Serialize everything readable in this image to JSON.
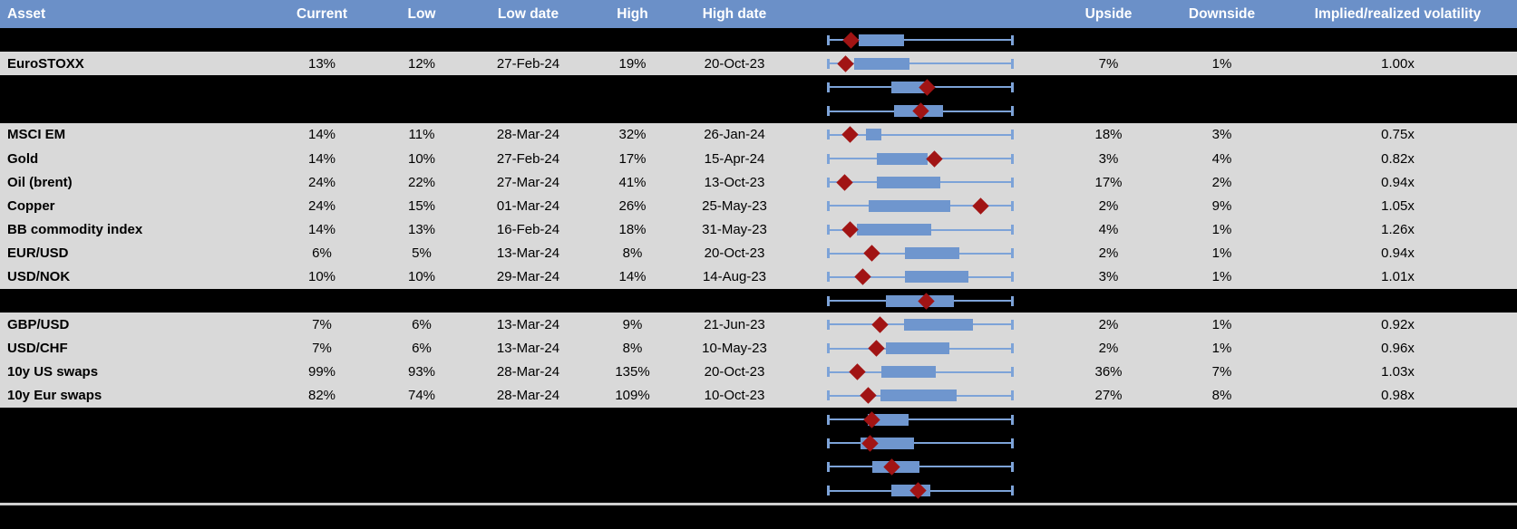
{
  "colors": {
    "header_bg": "#6b90c8",
    "header_text": "#ffffff",
    "row_gray": "#d9d9d9",
    "row_black": "#000000",
    "box_blue": "#6f96ce",
    "whisker_blue": "#7da3d8",
    "diamond_red": "#a11414",
    "separator_gray": "#cfcfcf"
  },
  "header": {
    "columns": [
      "Asset",
      "Current",
      "Low",
      "Low date",
      "High",
      "High date",
      "",
      "Upside",
      "Downside",
      "Implied/realized volatility"
    ]
  },
  "rows": [
    {
      "type": "hidden",
      "chart": {
        "box": [
          0.167,
          0.412
        ],
        "diamond": 0.127
      }
    },
    {
      "type": "data",
      "asset": "EuroSTOXX",
      "current": "13%",
      "low": "12%",
      "low_date": "27-Feb-24",
      "high": "19%",
      "high_date": "20-Oct-23",
      "upside": "7%",
      "downside": "1%",
      "implied": "1.00x",
      "chart": {
        "box": [
          0.142,
          0.441
        ],
        "diamond": 0.098
      }
    },
    {
      "type": "hidden",
      "chart": {
        "box": [
          0.343,
          0.544
        ],
        "diamond": 0.539
      }
    },
    {
      "type": "hidden",
      "chart": {
        "box": [
          0.358,
          0.623
        ],
        "diamond": 0.5
      }
    },
    {
      "type": "data",
      "asset": "MSCI EM",
      "current": "14%",
      "low": "11%",
      "low_date": "28-Mar-24",
      "high": "32%",
      "high_date": "26-Jan-24",
      "upside": "18%",
      "downside": "3%",
      "implied": "0.75x",
      "chart": {
        "box": [
          0.206,
          0.289
        ],
        "diamond": 0.118
      }
    },
    {
      "type": "data",
      "asset": "Gold",
      "current": "14%",
      "low": "10%",
      "low_date": "27-Feb-24",
      "high": "17%",
      "high_date": "15-Apr-24",
      "upside": "3%",
      "downside": "4%",
      "implied": "0.82x",
      "chart": {
        "box": [
          0.265,
          0.539
        ],
        "diamond": 0.574
      }
    },
    {
      "type": "data",
      "asset": "Oil (brent)",
      "current": "24%",
      "low": "22%",
      "low_date": "27-Mar-24",
      "high": "41%",
      "high_date": "13-Oct-23",
      "upside": "17%",
      "downside": "2%",
      "implied": "0.94x",
      "chart": {
        "box": [
          0.265,
          0.608
        ],
        "diamond": 0.093
      }
    },
    {
      "type": "data",
      "asset": "Copper",
      "current": "24%",
      "low": "15%",
      "low_date": "01-Mar-24",
      "high": "26%",
      "high_date": "25-May-23",
      "upside": "2%",
      "downside": "9%",
      "implied": "1.05x",
      "chart": {
        "box": [
          0.22,
          0.662
        ],
        "diamond": 0.828
      }
    },
    {
      "type": "data",
      "asset": "BB commodity index",
      "current": "14%",
      "low": "13%",
      "low_date": "16-Feb-24",
      "high": "18%",
      "high_date": "31-May-23",
      "upside": "4%",
      "downside": "1%",
      "implied": "1.26x",
      "chart": {
        "box": [
          0.157,
          0.559
        ],
        "diamond": 0.118
      }
    },
    {
      "type": "data",
      "asset": "EUR/USD",
      "current": "6%",
      "low": "5%",
      "low_date": "13-Mar-24",
      "high": "8%",
      "high_date": "20-Oct-23",
      "upside": "2%",
      "downside": "1%",
      "implied": "0.94x",
      "chart": {
        "box": [
          0.417,
          0.711
        ],
        "diamond": 0.24
      }
    },
    {
      "type": "data",
      "asset": "USD/NOK",
      "current": "10%",
      "low": "10%",
      "low_date": "29-Mar-24",
      "high": "14%",
      "high_date": "14-Aug-23",
      "upside": "3%",
      "downside": "1%",
      "implied": "1.01x",
      "chart": {
        "box": [
          0.417,
          0.76
        ],
        "diamond": 0.191
      }
    },
    {
      "type": "hidden",
      "chart": {
        "box": [
          0.314,
          0.681
        ],
        "diamond": 0.534
      }
    },
    {
      "type": "data",
      "asset": "GBP/USD",
      "current": "7%",
      "low": "6%",
      "low_date": "13-Mar-24",
      "high": "9%",
      "high_date": "21-Jun-23",
      "upside": "2%",
      "downside": "1%",
      "implied": "0.92x",
      "chart": {
        "box": [
          0.412,
          0.784
        ],
        "diamond": 0.284
      }
    },
    {
      "type": "data",
      "asset": "USD/CHF",
      "current": "7%",
      "low": "6%",
      "low_date": "13-Mar-24",
      "high": "8%",
      "high_date": "10-May-23",
      "upside": "2%",
      "downside": "1%",
      "implied": "0.96x",
      "chart": {
        "box": [
          0.314,
          0.657
        ],
        "diamond": 0.264
      }
    },
    {
      "type": "data",
      "asset": "10y US swaps",
      "current": "99%",
      "low": "93%",
      "low_date": "28-Mar-24",
      "high": "135%",
      "high_date": "20-Oct-23",
      "upside": "36%",
      "downside": "7%",
      "implied": "1.03x",
      "chart": {
        "box": [
          0.289,
          0.581
        ],
        "diamond": 0.161
      }
    },
    {
      "type": "data",
      "asset": "10y Eur swaps",
      "current": "82%",
      "low": "74%",
      "low_date": "28-Mar-24",
      "high": "109%",
      "high_date": "10-Oct-23",
      "upside": "27%",
      "downside": "8%",
      "implied": "0.98x",
      "chart": {
        "box": [
          0.284,
          0.696
        ],
        "diamond": 0.22
      }
    },
    {
      "type": "hidden",
      "chart": {
        "box": [
          0.216,
          0.436
        ],
        "diamond": 0.24
      }
    },
    {
      "type": "hidden",
      "chart": {
        "box": [
          0.177,
          0.466
        ],
        "diamond": 0.23
      }
    },
    {
      "type": "hidden",
      "chart": {
        "box": [
          0.24,
          0.495
        ],
        "diamond": 0.348
      }
    },
    {
      "type": "hidden",
      "chart": {
        "box": [
          0.343,
          0.554
        ],
        "diamond": 0.49
      }
    }
  ]
}
